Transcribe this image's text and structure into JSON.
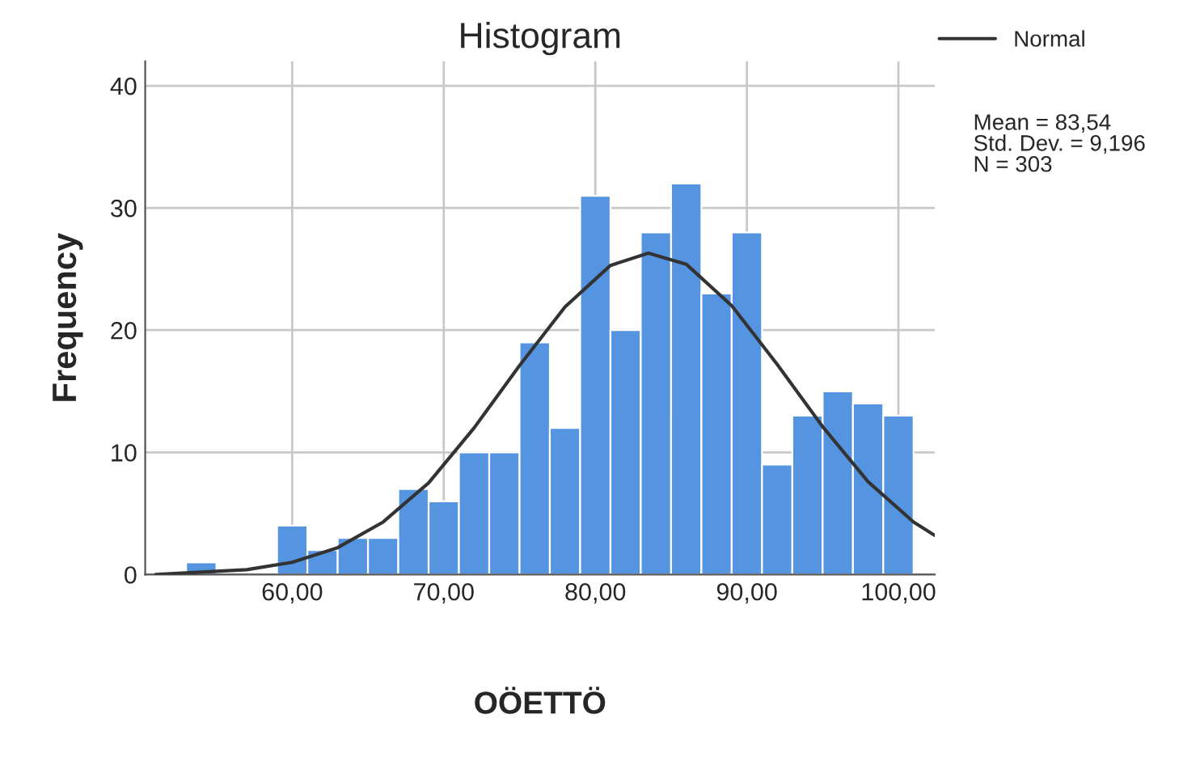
{
  "chart_data": {
    "type": "histogram",
    "title": "Histogram",
    "xlabel": "OÖETTÖ",
    "ylabel": "Frequency",
    "bins": [
      53,
      55,
      57,
      59,
      61,
      63,
      65,
      67,
      69,
      71,
      73,
      75,
      77,
      79,
      81,
      83,
      85,
      87,
      89,
      91,
      93,
      95,
      97,
      99,
      101
    ],
    "series": [
      {
        "color": "#5594e0",
        "values": [
          1,
          0,
          0,
          4,
          2,
          3,
          3,
          7,
          6,
          10,
          10,
          19,
          12,
          31,
          20,
          28,
          32,
          23,
          28,
          9,
          13,
          15,
          14,
          13
        ]
      },
      {
        "type": "line",
        "name": "Normal",
        "color": "#333333",
        "x": [
          51,
          54,
          57,
          60,
          63,
          66,
          69,
          72,
          75,
          78,
          81,
          83.5,
          86,
          89,
          92,
          95,
          98,
          101,
          102.4
        ],
        "values": [
          0,
          0.2,
          0.4,
          1,
          2.2,
          4.3,
          7.5,
          12,
          17.1,
          21.9,
          25.3,
          26.3,
          25.4,
          22,
          17.2,
          12.1,
          7.6,
          4.3,
          3.2
        ]
      }
    ],
    "xlim": [
      50.3,
      102.4
    ],
    "ylim": [
      0,
      42
    ],
    "xticks": [
      {
        "value": 60,
        "label": "60,00"
      },
      {
        "value": 70,
        "label": "70,00"
      },
      {
        "value": 80,
        "label": "80,00"
      },
      {
        "value": 90,
        "label": "90,00"
      },
      {
        "value": 100,
        "label": "100,00"
      }
    ],
    "yticks": [
      0,
      10,
      20,
      30,
      40
    ],
    "grid": true,
    "legend": "top right",
    "annotations": [
      "Mean = 83,54\nStd. Dev. = 9,196\nN = 303"
    ]
  }
}
